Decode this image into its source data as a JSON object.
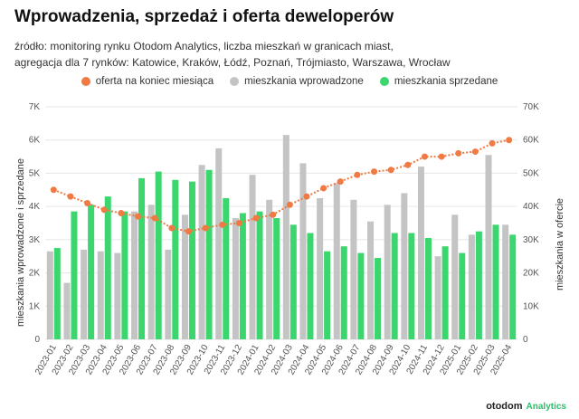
{
  "title": "Wprowadzenia, sprzedaż i oferta deweloperów",
  "subtitle_line1": "źródło: monitoring rynku Otodom Analytics, liczba mieszkań w granicach miast,",
  "subtitle_line2": "agregacja dla 7 rynków: Katowice, Kraków, Łódź, Poznań, Trójmiasto, Warszawa, Wrocław",
  "brand": {
    "name": "otodom",
    "sub": "Analytics"
  },
  "colors": {
    "offer": "#f07a43",
    "introduced": "#c4c4c4",
    "sold": "#3bd66e"
  },
  "chart_data": {
    "type": "bar",
    "categories": [
      "2023-01",
      "2023-02",
      "2023-03",
      "2023-04",
      "2023-05",
      "2023-06",
      "2023-07",
      "2023-08",
      "2023-09",
      "2023-10",
      "2023-11",
      "2023-12",
      "2024-01",
      "2024-02",
      "2024-03",
      "2024-04",
      "2024-05",
      "2024-06",
      "2024-07",
      "2024-08",
      "2024-09",
      "2024-10",
      "2024-11",
      "2024-12",
      "2025-01",
      "2025-02",
      "2025-03",
      "2025-04"
    ],
    "series": [
      {
        "name": "oferta na koniec miesiąca",
        "kind": "line",
        "axis": "right",
        "values": [
          45000,
          43000,
          41000,
          39000,
          38000,
          37000,
          36500,
          33500,
          32500,
          33500,
          34500,
          35000,
          36500,
          37500,
          40500,
          43000,
          45500,
          47500,
          49500,
          50500,
          51000,
          52500,
          55000,
          55000,
          56000,
          56500,
          59000,
          60000
        ]
      },
      {
        "name": "mieszkania wprowadzone",
        "kind": "bar",
        "axis": "left",
        "values": [
          2650,
          1700,
          2700,
          2650,
          2600,
          3850,
          4050,
          2700,
          3750,
          5250,
          5750,
          3650,
          4950,
          4200,
          6150,
          5300,
          4250,
          4700,
          4200,
          3550,
          4050,
          4400,
          5200,
          2500,
          3750,
          3150,
          5550,
          3450
        ]
      },
      {
        "name": "mieszkania sprzedane",
        "kind": "bar",
        "axis": "left",
        "values": [
          2750,
          3850,
          4050,
          4300,
          3850,
          4850,
          5050,
          4800,
          4750,
          5100,
          4250,
          3800,
          3850,
          3650,
          3450,
          3200,
          2650,
          2800,
          2600,
          2450,
          3200,
          3200,
          3050,
          2800,
          2600,
          3250,
          3450,
          3150
        ]
      }
    ],
    "ylabel": "mieszkania wprowadzone i sprzedane",
    "y2label": "mieszkania w ofercie",
    "ylim": [
      0,
      7000
    ],
    "y2lim": [
      0,
      70000
    ],
    "yticks": [
      "0",
      "1K",
      "2K",
      "3K",
      "4K",
      "5K",
      "6K",
      "7K"
    ],
    "y2ticks": [
      "0",
      "10K",
      "20K",
      "30K",
      "40K",
      "50K",
      "60K",
      "70K"
    ]
  }
}
